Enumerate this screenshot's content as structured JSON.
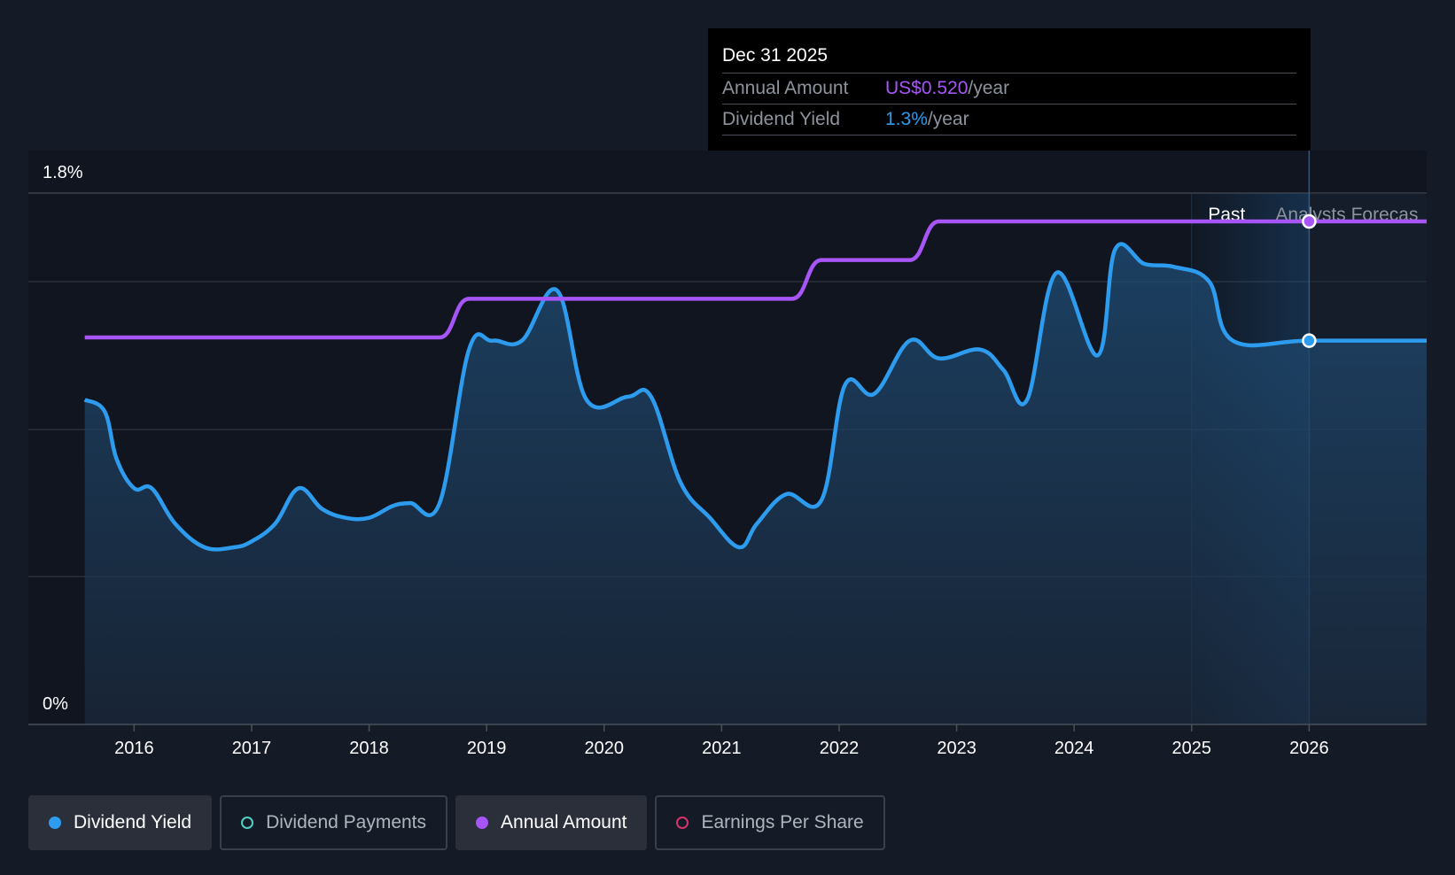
{
  "chart_data": {
    "type": "line",
    "y_axis": {
      "top_label": "1.8%",
      "bottom_label": "0%",
      "ylim": [
        0,
        1.8
      ]
    },
    "x_ticks": [
      "2016",
      "2017",
      "2018",
      "2019",
      "2020",
      "2021",
      "2022",
      "2023",
      "2024",
      "2025",
      "2026"
    ],
    "xlim": [
      2015.1,
      2027.0
    ],
    "grid": true,
    "regions": {
      "past_label": "Past",
      "forecast_label": "Analysts Forecas"
    },
    "series": [
      {
        "name": "Dividend Yield",
        "unit": "%",
        "color": "#2d9cef",
        "x": [
          2015.58,
          2015.75,
          2015.85,
          2016.0,
          2016.15,
          2016.35,
          2016.6,
          2016.85,
          2017.0,
          2017.2,
          2017.4,
          2017.6,
          2017.8,
          2018.0,
          2018.2,
          2018.35,
          2018.6,
          2018.85,
          2019.05,
          2019.3,
          2019.6,
          2019.85,
          2020.2,
          2020.4,
          2020.65,
          2020.9,
          2021.15,
          2021.3,
          2021.55,
          2021.85,
          2022.05,
          2022.3,
          2022.6,
          2022.85,
          2023.2,
          2023.4,
          2023.6,
          2023.85,
          2024.2,
          2024.35,
          2024.6,
          2024.85,
          2025.15,
          2025.35,
          2026.0,
          2027.0
        ],
        "y": [
          1.1,
          1.06,
          0.9,
          0.8,
          0.8,
          0.68,
          0.6,
          0.6,
          0.62,
          0.68,
          0.8,
          0.73,
          0.7,
          0.7,
          0.74,
          0.75,
          0.75,
          1.27,
          1.3,
          1.3,
          1.47,
          1.1,
          1.11,
          1.11,
          0.82,
          0.7,
          0.6,
          0.68,
          0.78,
          0.76,
          1.15,
          1.12,
          1.3,
          1.24,
          1.27,
          1.2,
          1.1,
          1.53,
          1.25,
          1.61,
          1.56,
          1.55,
          1.5,
          1.3,
          1.3,
          1.3
        ]
      },
      {
        "name": "Annual Amount",
        "unit": "US$/year",
        "color": "#a855f7",
        "x": [
          2015.58,
          2018.6,
          2018.85,
          2021.6,
          2021.85,
          2022.6,
          2022.85,
          2027.0
        ],
        "y": [
          0.46,
          0.46,
          0.48,
          0.48,
          0.5,
          0.5,
          0.52,
          0.52
        ]
      }
    ],
    "tooltip": {
      "date": "Dec 31 2025",
      "rows": [
        {
          "label": "Annual Amount",
          "value": "US$0.520",
          "unit": "/year"
        },
        {
          "label": "Dividend Yield",
          "value": "1.3%",
          "unit": "/year"
        }
      ]
    },
    "legend": [
      {
        "label": "Dividend Yield",
        "color": "#2d9cef",
        "active": true
      },
      {
        "label": "Dividend Payments",
        "color": "#4fd1c5",
        "active": false
      },
      {
        "label": "Annual Amount",
        "color": "#a855f7",
        "active": true
      },
      {
        "label": "Earnings Per Share",
        "color": "#d6336c",
        "active": false
      }
    ]
  }
}
